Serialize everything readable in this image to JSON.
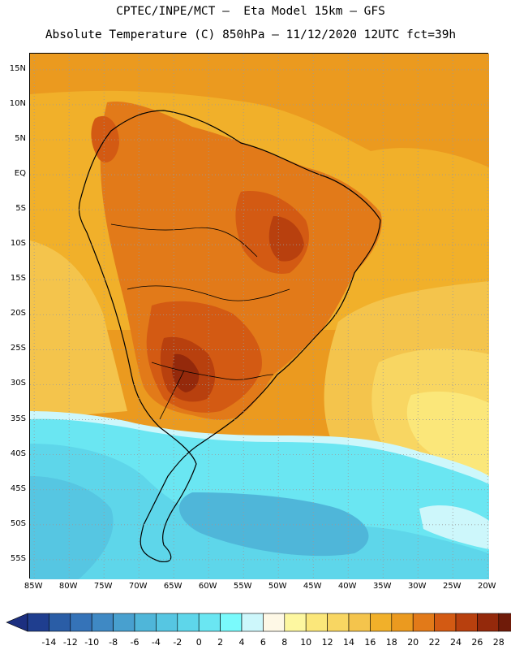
{
  "title_line1": "CPTEC/INPE/MCT –  Eta Model 15km – GFS",
  "title_line2": "Absolute Temperature (C) 850hPa – 11/12/2020 12UTC fct=39h",
  "map": {
    "lat_labels": [
      "15N",
      "10N",
      "5N",
      "EQ",
      "5S",
      "10S",
      "15S",
      "20S",
      "25S",
      "30S",
      "35S",
      "40S",
      "45S",
      "50S",
      "55S"
    ],
    "lat_values": [
      15,
      10,
      5,
      0,
      -5,
      -10,
      -15,
      -20,
      -25,
      -30,
      -35,
      -40,
      -45,
      -50,
      -55
    ],
    "lon_labels": [
      "85W",
      "80W",
      "75W",
      "70W",
      "65W",
      "60W",
      "55W",
      "50W",
      "45W",
      "40W",
      "35W",
      "30W",
      "25W",
      "20W"
    ],
    "lon_values": [
      -85,
      -80,
      -75,
      -70,
      -65,
      -60,
      -55,
      -50,
      -45,
      -40,
      -35,
      -30,
      -25,
      -20
    ],
    "extent": {
      "lon_min": -85.6,
      "lon_max": -19.8,
      "lat_min": -57.8,
      "lat_max": 17.3
    },
    "gridlines": "dotted"
  },
  "colorbar": {
    "labels": [
      "-14",
      "-12",
      "-10",
      "-8",
      "-6",
      "-4",
      "-2",
      "0",
      "2",
      "4",
      "6",
      "8",
      "10",
      "12",
      "14",
      "16",
      "18",
      "20",
      "22",
      "24",
      "26",
      "28"
    ],
    "colors": [
      "#1f3e8f",
      "#2a5da6",
      "#3573b8",
      "#3f89c4",
      "#48a0cf",
      "#4fb6d9",
      "#56c6e2",
      "#5ed6ea",
      "#6ae6f2",
      "#7afafc",
      "#cdf7fb",
      "#fef8e6",
      "#fdf7a0",
      "#fbe77a",
      "#f8d662",
      "#f4c44c",
      "#f1b02a",
      "#eb9a1f",
      "#e27a19",
      "#d35a13",
      "#b8400e",
      "#94290b",
      "#6f1b09"
    ],
    "under_color": "#1c2f80",
    "over_color": "#6a0a1a"
  }
}
